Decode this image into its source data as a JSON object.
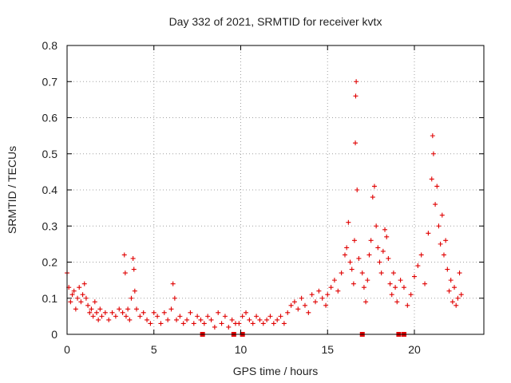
{
  "chart_data": {
    "type": "scatter",
    "title": "Day 332 of 2021, SRMTID for receiver kvtx",
    "xlabel": "GPS time / hours",
    "ylabel": "SRMTID / TECUs",
    "xlim": [
      0,
      24
    ],
    "ylim": [
      0,
      0.8
    ],
    "x_ticks": [
      0,
      5,
      10,
      15,
      20
    ],
    "x_tick_labels": [
      "0",
      "5",
      "10",
      "15",
      "20"
    ],
    "y_ticks": [
      0,
      0.1,
      0.2,
      0.3,
      0.4,
      0.5,
      0.6,
      0.7,
      0.8
    ],
    "y_tick_labels": [
      "0",
      "0.1",
      "0.2",
      "0.3",
      "0.4",
      "0.5",
      "0.6",
      "0.7",
      "0.8"
    ],
    "grid": true,
    "marker": "+",
    "color": "#e00000",
    "series": [
      {
        "name": "SRMTID",
        "x": [
          0.0,
          0.1,
          0.2,
          0.3,
          0.4,
          0.5,
          0.6,
          0.7,
          0.8,
          0.9,
          1.0,
          1.1,
          1.2,
          1.3,
          1.4,
          1.5,
          1.6,
          1.7,
          1.8,
          1.9,
          2.0,
          2.2,
          2.4,
          2.6,
          2.8,
          3.0,
          3.2,
          3.3,
          3.35,
          3.4,
          3.5,
          3.6,
          3.7,
          3.8,
          3.85,
          3.9,
          4.0,
          4.2,
          4.4,
          4.6,
          4.8,
          5.0,
          5.2,
          5.4,
          5.6,
          5.8,
          6.0,
          6.1,
          6.2,
          6.3,
          6.5,
          6.7,
          6.9,
          7.1,
          7.3,
          7.5,
          7.7,
          7.9,
          8.1,
          8.3,
          8.5,
          8.7,
          8.9,
          9.1,
          9.3,
          9.5,
          9.7,
          9.9,
          10.1,
          10.3,
          10.5,
          10.7,
          10.9,
          11.1,
          11.3,
          11.5,
          11.7,
          11.9,
          12.1,
          12.3,
          12.5,
          12.7,
          12.9,
          13.1,
          13.3,
          13.5,
          13.7,
          13.9,
          14.1,
          14.3,
          14.5,
          14.7,
          14.9,
          15.0,
          15.2,
          15.4,
          15.6,
          15.8,
          16.0,
          16.1,
          16.2,
          16.3,
          16.4,
          16.5,
          16.55,
          16.6,
          16.62,
          16.65,
          16.7,
          16.8,
          17.0,
          17.1,
          17.2,
          17.3,
          17.4,
          17.5,
          17.6,
          17.7,
          17.8,
          17.9,
          18.0,
          18.1,
          18.2,
          18.3,
          18.4,
          18.5,
          18.6,
          18.7,
          18.8,
          18.9,
          19.0,
          19.2,
          19.4,
          19.6,
          19.8,
          20.0,
          20.2,
          20.4,
          20.6,
          20.8,
          21.0,
          21.05,
          21.1,
          21.2,
          21.3,
          21.4,
          21.5,
          21.6,
          21.7,
          21.8,
          21.9,
          22.0,
          22.1,
          22.2,
          22.3,
          22.4,
          22.5,
          22.6,
          22.7
        ],
        "y": [
          0.17,
          0.13,
          0.09,
          0.11,
          0.12,
          0.07,
          0.1,
          0.13,
          0.09,
          0.11,
          0.14,
          0.1,
          0.08,
          0.06,
          0.07,
          0.05,
          0.09,
          0.06,
          0.04,
          0.07,
          0.05,
          0.06,
          0.04,
          0.06,
          0.05,
          0.07,
          0.06,
          0.22,
          0.17,
          0.05,
          0.07,
          0.04,
          0.1,
          0.21,
          0.18,
          0.12,
          0.07,
          0.05,
          0.06,
          0.04,
          0.03,
          0.06,
          0.05,
          0.03,
          0.06,
          0.04,
          0.07,
          0.14,
          0.1,
          0.04,
          0.05,
          0.03,
          0.04,
          0.06,
          0.03,
          0.05,
          0.04,
          0.03,
          0.05,
          0.04,
          0.02,
          0.06,
          0.03,
          0.05,
          0.02,
          0.04,
          0.03,
          0.03,
          0.05,
          0.06,
          0.04,
          0.03,
          0.05,
          0.04,
          0.03,
          0.04,
          0.05,
          0.03,
          0.04,
          0.05,
          0.03,
          0.06,
          0.08,
          0.09,
          0.07,
          0.1,
          0.08,
          0.06,
          0.11,
          0.09,
          0.12,
          0.1,
          0.08,
          0.11,
          0.13,
          0.15,
          0.12,
          0.17,
          0.22,
          0.24,
          0.31,
          0.2,
          0.18,
          0.14,
          0.26,
          0.53,
          0.66,
          0.7,
          0.4,
          0.21,
          0.17,
          0.13,
          0.09,
          0.15,
          0.22,
          0.26,
          0.38,
          0.41,
          0.3,
          0.24,
          0.2,
          0.17,
          0.23,
          0.29,
          0.27,
          0.21,
          0.14,
          0.11,
          0.17,
          0.13,
          0.09,
          0.15,
          0.13,
          0.08,
          0.11,
          0.16,
          0.19,
          0.22,
          0.14,
          0.28,
          0.43,
          0.55,
          0.5,
          0.36,
          0.41,
          0.3,
          0.25,
          0.33,
          0.22,
          0.26,
          0.18,
          0.12,
          0.15,
          0.09,
          0.13,
          0.08,
          0.1,
          0.17,
          0.11
        ],
        "zero_x": [
          7.8,
          9.6,
          10.1,
          17.0,
          19.1,
          19.4
        ]
      }
    ]
  }
}
